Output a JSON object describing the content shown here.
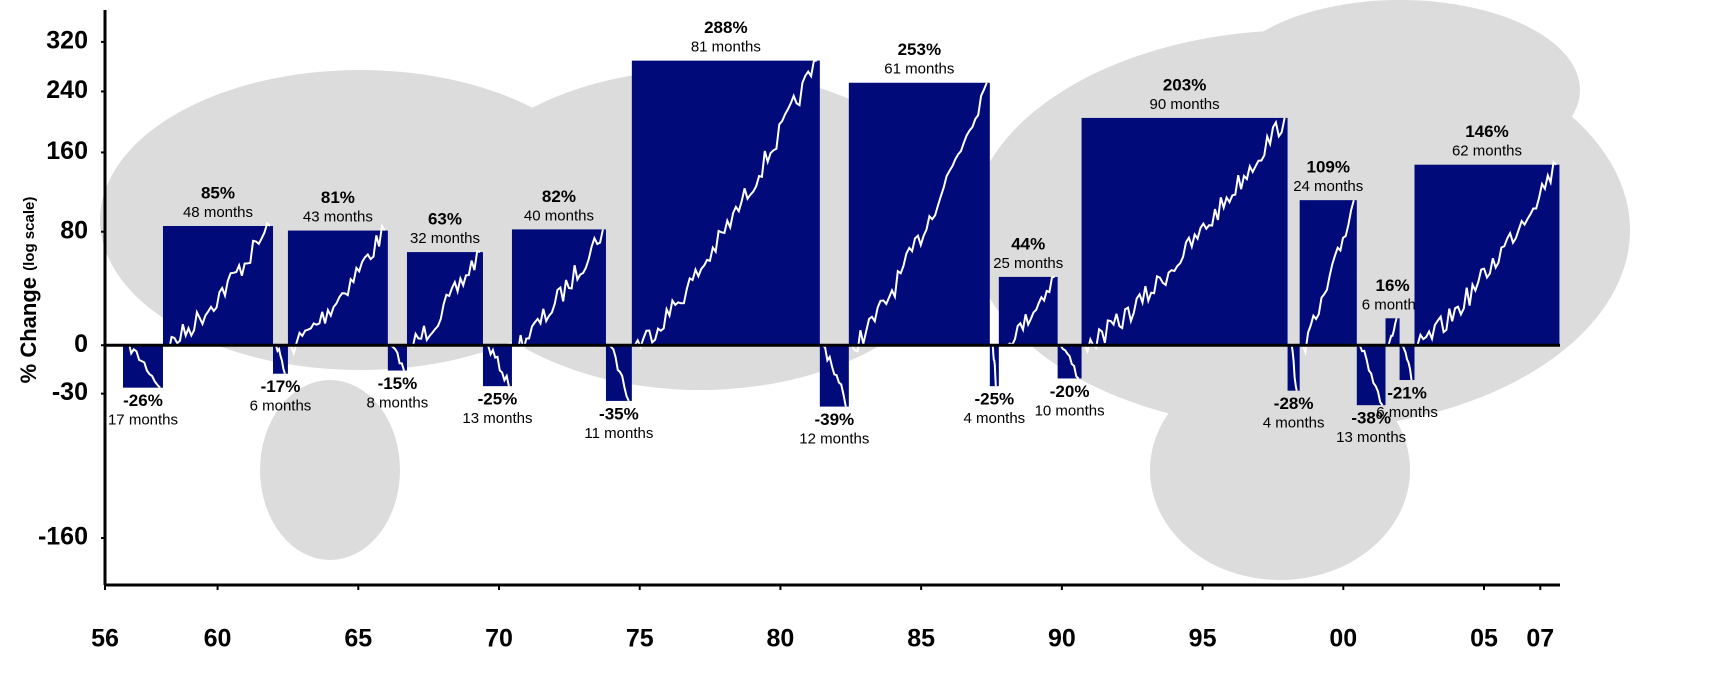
{
  "chart_data": {
    "type": "market-cycles",
    "y_label": "% Change",
    "y_label_note": "(log scale)",
    "log_scale": true,
    "color": "#000a78",
    "xlim": [
      1956,
      2007.7
    ],
    "xticks": [
      {
        "value": 1956,
        "label": "56"
      },
      {
        "value": 1960,
        "label": "60"
      },
      {
        "value": 1965,
        "label": "65"
      },
      {
        "value": 1970,
        "label": "70"
      },
      {
        "value": 1975,
        "label": "75"
      },
      {
        "value": 1980,
        "label": "80"
      },
      {
        "value": 1985,
        "label": "85"
      },
      {
        "value": 1990,
        "label": "90"
      },
      {
        "value": 1995,
        "label": "95"
      },
      {
        "value": 2000,
        "label": "00"
      },
      {
        "value": 2005,
        "label": "05"
      },
      {
        "value": 2007,
        "label": "07"
      }
    ],
    "ylim": [
      -220,
      380
    ],
    "yticks": [
      320,
      240,
      160,
      80,
      0,
      -30,
      -160
    ],
    "starts": [
      1956.64,
      1958.06,
      1961.97,
      1962.5,
      1966.05,
      1966.73,
      1969.43,
      1970.46,
      1973.8,
      1974.72,
      1981.4,
      1982.43,
      1987.44,
      1987.76,
      1989.85,
      1990.7,
      1998.02,
      1998.45,
      2000.48,
      2001.5,
      2002.0,
      2002.53
    ],
    "ends": [
      1958.06,
      1961.97,
      1962.5,
      1966.05,
      1966.73,
      1969.43,
      1970.46,
      1973.8,
      1974.72,
      1981.4,
      1982.43,
      1987.44,
      1987.76,
      1989.85,
      1990.7,
      1998.02,
      1998.45,
      2000.48,
      2001.5,
      2002.0,
      2002.53,
      2007.68
    ],
    "values": [
      -26,
      85,
      -17,
      81,
      -15,
      63,
      -25,
      82,
      -35,
      288,
      -39,
      253,
      -25,
      44,
      -20,
      203,
      -28,
      109,
      -38,
      16,
      -21,
      146
    ],
    "value_labels": [
      "-26%",
      "85%",
      "-17%",
      "81%",
      "-15%",
      "63%",
      "-25%",
      "82%",
      "-35%",
      "288%",
      "-39%",
      "253%",
      "-25%",
      "44%",
      "-20%",
      "203%",
      "-28%",
      "109%",
      "-38%",
      "16%",
      "-21%",
      "146%"
    ],
    "months": [
      17,
      48,
      6,
      43,
      8,
      32,
      13,
      40,
      11,
      81,
      12,
      61,
      4,
      25,
      10,
      90,
      4,
      24,
      13,
      6,
      6,
      62
    ],
    "months_labels": [
      "17 months",
      "48 months",
      "6 months",
      "43 months",
      "8 months",
      "32 months",
      "13 months",
      "40 months",
      "11 months",
      "81 months",
      "12 months",
      "61 months",
      "4 months",
      "25 months",
      "10 months",
      "90 months",
      "4 months",
      "24 months",
      "13 months",
      "6 months",
      "6 months",
      "62 months"
    ]
  }
}
